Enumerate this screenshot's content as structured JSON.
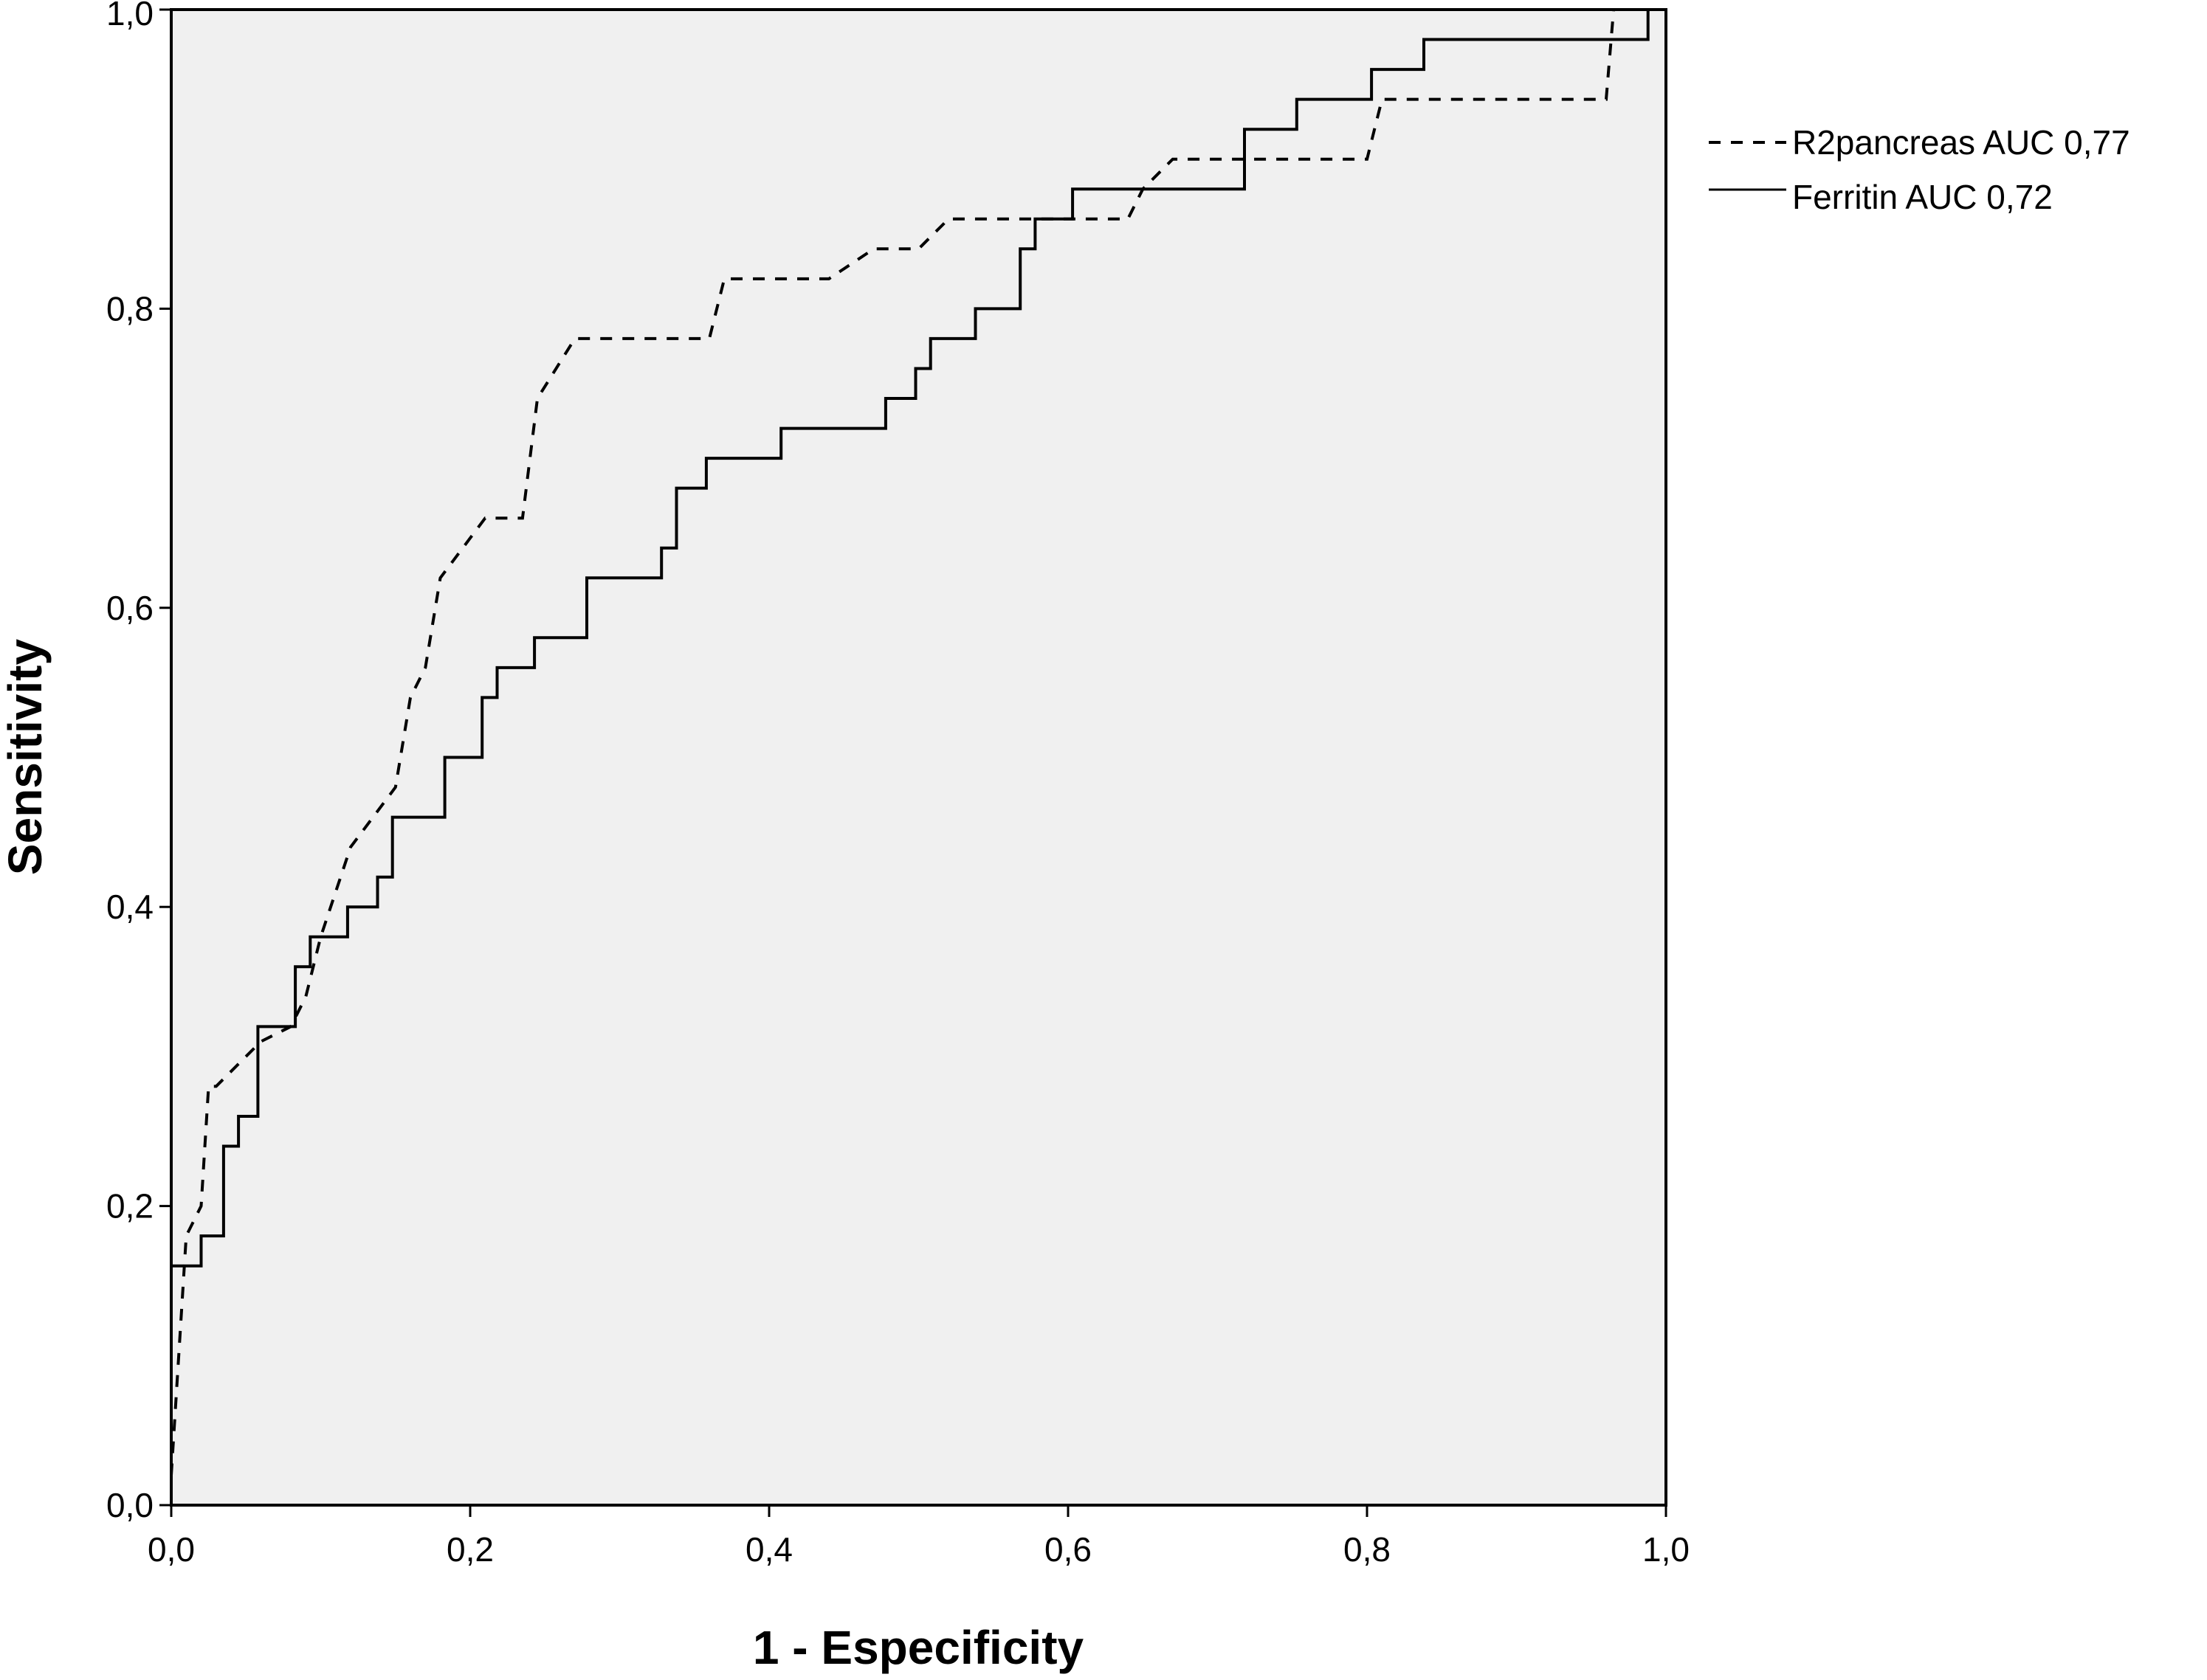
{
  "chart_data": {
    "type": "line",
    "xlabel": "1 - Especificity",
    "ylabel": "Sensitivity",
    "xlim": [
      0,
      1
    ],
    "ylim": [
      0,
      1
    ],
    "x_ticks": [
      "0,0",
      "0,2",
      "0,4",
      "0,6",
      "0,8",
      "1,0"
    ],
    "y_ticks": [
      "0,0",
      "0,2",
      "0,4",
      "0,6",
      "0,8",
      "1,0"
    ],
    "grid": false,
    "legend_position": "right",
    "background_color": "#f0f0f0",
    "line_color": "#000000",
    "series": [
      {
        "name": "R2pancreas AUC 0,77",
        "style": "dashed",
        "x": [
          0,
          0.01,
          0.02,
          0.025,
          0.03,
          0.06,
          0.08,
          0.09,
          0.1,
          0.12,
          0.15,
          0.16,
          0.17,
          0.18,
          0.21,
          0.235,
          0.245,
          0.27,
          0.36,
          0.37,
          0.44,
          0.47,
          0.5,
          0.52,
          0.56,
          0.6,
          0.64,
          0.65,
          0.67,
          0.72,
          0.8,
          0.81,
          0.9,
          0.96,
          0.965,
          0.98,
          0.99,
          1.0
        ],
        "y": [
          0.02,
          0.18,
          0.2,
          0.28,
          0.28,
          0.31,
          0.32,
          0.34,
          0.38,
          0.44,
          0.48,
          0.54,
          0.56,
          0.62,
          0.66,
          0.66,
          0.74,
          0.78,
          0.78,
          0.82,
          0.82,
          0.84,
          0.84,
          0.86,
          0.86,
          0.86,
          0.86,
          0.88,
          0.9,
          0.9,
          0.9,
          0.94,
          0.94,
          0.94,
          1.0,
          1.0,
          1.0,
          1.0
        ]
      },
      {
        "name": "Ferritin AUC 0,72",
        "style": "solid",
        "x": [
          0,
          0,
          0.02,
          0.02,
          0.035,
          0.035,
          0.045,
          0.045,
          0.058,
          0.058,
          0.083,
          0.083,
          0.093,
          0.093,
          0.118,
          0.118,
          0.138,
          0.138,
          0.148,
          0.148,
          0.183,
          0.183,
          0.208,
          0.208,
          0.218,
          0.218,
          0.243,
          0.243,
          0.278,
          0.278,
          0.328,
          0.328,
          0.338,
          0.338,
          0.358,
          0.358,
          0.408,
          0.408,
          0.478,
          0.478,
          0.498,
          0.498,
          0.508,
          0.508,
          0.538,
          0.538,
          0.568,
          0.568,
          0.578,
          0.578,
          0.603,
          0.603,
          0.718,
          0.718,
          0.753,
          0.753,
          0.803,
          0.803,
          0.838,
          0.838,
          0.988,
          0.988,
          1.0
        ],
        "y": [
          0,
          0.16,
          0.16,
          0.18,
          0.18,
          0.24,
          0.24,
          0.26,
          0.26,
          0.32,
          0.32,
          0.36,
          0.36,
          0.38,
          0.38,
          0.4,
          0.4,
          0.42,
          0.42,
          0.46,
          0.46,
          0.5,
          0.5,
          0.54,
          0.54,
          0.56,
          0.56,
          0.58,
          0.58,
          0.62,
          0.62,
          0.64,
          0.64,
          0.68,
          0.68,
          0.7,
          0.7,
          0.72,
          0.72,
          0.74,
          0.74,
          0.76,
          0.76,
          0.78,
          0.78,
          0.8,
          0.8,
          0.84,
          0.84,
          0.86,
          0.86,
          0.88,
          0.88,
          0.92,
          0.92,
          0.94,
          0.94,
          0.96,
          0.96,
          0.98,
          0.98,
          1.0,
          1.0
        ]
      }
    ]
  }
}
